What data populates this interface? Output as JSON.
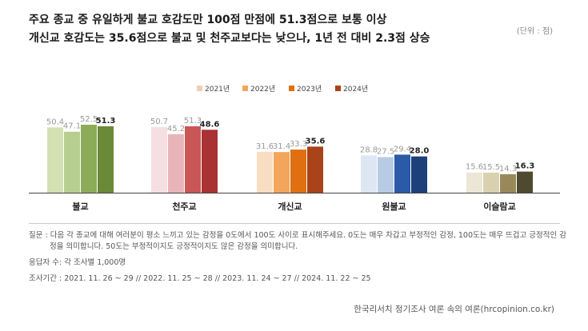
{
  "header": {
    "title_line1": "주요 종교 중 유일하게 불교 호감도만 100점 만점에 51.3점으로 보통 이상",
    "title_line2": "개신교 호감도는 35.6점으로 불교 및 천주교보다는 낮으나, 1년 전 대비 2.3점 상승",
    "unit": "(단위 : 점)"
  },
  "chart_data": {
    "type": "bar",
    "categories": [
      "불교",
      "천주교",
      "개신교",
      "원불교",
      "이슬람교"
    ],
    "legend_position": "top-center",
    "grid": false,
    "ylim": [
      0,
      60
    ],
    "series": [
      {
        "name": "2021년",
        "values": [
          50.4,
          50.7,
          31.6,
          28.8,
          15.6
        ]
      },
      {
        "name": "2022년",
        "values": [
          47.1,
          45.2,
          31.4,
          27.5,
          15.5
        ]
      },
      {
        "name": "2023년",
        "values": [
          52.5,
          51.3,
          33.3,
          29.4,
          14.3
        ]
      },
      {
        "name": "2024년",
        "values": [
          51.3,
          48.6,
          35.6,
          28.0,
          16.3
        ]
      }
    ],
    "category_colors": [
      [
        "#d2e0b2",
        "#b6ce8f",
        "#8dac58",
        "#6a8a37"
      ],
      [
        "#f6dfe2",
        "#e8b4b8",
        "#c95757",
        "#a93232"
      ],
      [
        "#f9ddc2",
        "#f4a55c",
        "#e06f11",
        "#a8431a"
      ],
      [
        "#dde6f3",
        "#b7cbe4",
        "#2a5aa8",
        "#1d3f7a"
      ],
      [
        "#ece6d6",
        "#d9d0b0",
        "#99895a",
        "#4f4a2f"
      ]
    ],
    "legend_colors": [
      "#f2cfb0",
      "#f4a55c",
      "#e06f11",
      "#a8431a"
    ]
  },
  "notes": {
    "question": "질문 : 다음 각 종교에 대해 여러분이 평소 느끼고 있는 감정을 0도에서 100도 사이로 표시해주세요. 0도는 매우 차갑고 부정적인 감정, 100도는 매우 뜨겁고 긍정적인 감정을 의미합니다. 50도는 부정적이지도 긍정적이지도 않은 감정을 의미합니다.",
    "respondents": "응답자 수: 각 조사별 1,000명",
    "period": "조사기간 : 2021. 11. 26 ~ 29 // 2022. 11. 25 ~ 28 // 2023. 11. 24 ~ 27 // 2024. 11. 22 ~ 25"
  },
  "source": "한국리서치 정기조사 여론 속의 여론(hrcopinion.co.kr)"
}
